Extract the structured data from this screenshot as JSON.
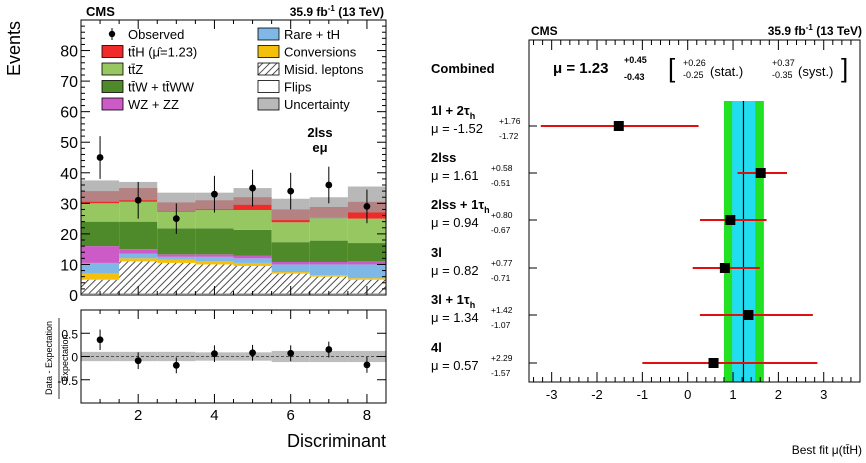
{
  "left": {
    "header": {
      "cms": "CMS",
      "lumi": "35.9 fb",
      "lumi_sup": "-1",
      "lumi_rest": " (13 TeV)"
    },
    "ylabel": "Events",
    "xlabel": "Discriminant",
    "ratio_ylabel_num": "Data - Expectation",
    "ratio_ylabel_den": "Expectation",
    "category_label": "2lss",
    "category_sub": "eμ",
    "legend": [
      {
        "label": "Observed",
        "kind": "marker"
      },
      {
        "label": "Rare + tH",
        "color": "#7fb8e6"
      },
      {
        "label": "tt̄H (μ̂=1.23)",
        "color": "#f02a2a"
      },
      {
        "label": "Conversions",
        "color": "#f5c00b"
      },
      {
        "label": "tt̄Z",
        "color": "#96c760"
      },
      {
        "label": "Misid. leptons",
        "color": "hatch"
      },
      {
        "label": "tt̄W + tt̄WW",
        "color": "#4f8a2a"
      },
      {
        "label": "Flips",
        "color": "#ffffff"
      },
      {
        "label": "WZ + ZZ",
        "color": "#cc5bc8"
      },
      {
        "label": "Uncertainty",
        "color": "#b9b9b9"
      }
    ]
  },
  "right": {
    "header": {
      "cms": "CMS",
      "lumi": "35.9 fb",
      "lumi_sup": "-1",
      "lumi_rest": " (13 TeV)"
    },
    "xlabel": "Best fit μ(tt̄H)",
    "combined": {
      "label": "Combined",
      "mu_text": "μ = 1.23",
      "up": "+0.45",
      "down": "-0.43",
      "stat_up": "+0.26",
      "stat_down": "-0.25",
      "stat_label": "(stat.)",
      "syst_up": "+0.37",
      "syst_down": "-0.35",
      "syst_label": "(syst.)"
    },
    "channels": [
      {
        "name_main": "1l + 2τ",
        "name_sub": "h",
        "mu_text": "μ = -1.52",
        "up": "+1.76",
        "down": "-1.72"
      },
      {
        "name_main": "2lss",
        "name_sub": "",
        "mu_text": "μ = 1.61",
        "up": "+0.58",
        "down": "-0.51"
      },
      {
        "name_main": "2lss + 1τ",
        "name_sub": "h",
        "mu_text": "μ = 0.94",
        "up": "+0.80",
        "down": "-0.67"
      },
      {
        "name_main": "3l",
        "name_sub": "",
        "mu_text": "μ = 0.82",
        "up": "+0.77",
        "down": "-0.71"
      },
      {
        "name_main": "3l + 1τ",
        "name_sub": "h",
        "mu_text": "μ = 1.34",
        "up": "+1.42",
        "down": "-1.07"
      },
      {
        "name_main": "4l",
        "name_sub": "",
        "mu_text": "μ = 0.57",
        "up": "+2.29",
        "down": "-1.57"
      }
    ]
  },
  "chart_data": [
    {
      "type": "bar",
      "stacked": true,
      "title": "2lss eμ",
      "xlabel": "Discriminant",
      "ylabel": "Events",
      "xlim": [
        0.5,
        8.5
      ],
      "ylim": [
        0,
        90
      ],
      "xticks": [
        2,
        4,
        6,
        8
      ],
      "yticks": [
        0,
        10,
        20,
        30,
        40,
        50,
        60,
        70,
        80
      ],
      "bin_edges": [
        0.5,
        1.5,
        2.5,
        3.5,
        4.5,
        5.5,
        6.5,
        7.5,
        8.5
      ],
      "series": [
        {
          "name": "Flips",
          "values": [
            0.5,
            0.5,
            0.5,
            0.5,
            0.5,
            0.5,
            0.5,
            0.5
          ]
        },
        {
          "name": "Misid. leptons",
          "values": [
            4.5,
            10.5,
            10.0,
            9.5,
            9.0,
            6.5,
            5.5,
            4.5
          ]
        },
        {
          "name": "Conversions",
          "values": [
            2.0,
            1.0,
            1.0,
            1.0,
            1.0,
            0.5,
            0.5,
            0.5
          ]
        },
        {
          "name": "Rare + tH",
          "values": [
            3.5,
            1.5,
            1.0,
            1.5,
            1.5,
            2.5,
            3.5,
            4.5
          ]
        },
        {
          "name": "WZ + ZZ",
          "values": [
            5.5,
            1.5,
            0.8,
            0.8,
            0.8,
            0.8,
            0.8,
            1.0
          ]
        },
        {
          "name": "tt̄W + tt̄WW",
          "values": [
            8.0,
            9.0,
            8.5,
            8.5,
            8.5,
            6.5,
            7.0,
            6.0
          ]
        },
        {
          "name": "tt̄Z",
          "values": [
            6.0,
            6.5,
            5.5,
            6.0,
            6.5,
            6.5,
            7.5,
            8.0
          ]
        },
        {
          "name": "tt̄H (μ̂=1.23)",
          "values": [
            4.0,
            4.5,
            3.0,
            3.2,
            4.2,
            4.2,
            3.5,
            5.5
          ]
        }
      ],
      "uncertainty_band": [
        [
          30.5,
          37.5
        ],
        [
          31.0,
          37.0
        ],
        [
          27.5,
          33.5
        ],
        [
          28.0,
          33.5
        ],
        [
          29.5,
          35.0
        ],
        [
          24.5,
          31.5
        ],
        [
          25.0,
          32.0
        ],
        [
          27.0,
          35.5
        ]
      ],
      "observed": {
        "x": [
          1,
          2,
          3,
          4,
          5,
          6,
          7,
          8
        ],
        "y": [
          45,
          31,
          25,
          33,
          35,
          34,
          36,
          29
        ],
        "err": [
          7,
          6,
          5,
          6,
          6,
          6,
          6,
          5.5
        ]
      }
    },
    {
      "type": "scatter",
      "title": "Data - Expectation / Expectation",
      "xlabel": "Discriminant",
      "ylabel": "Data - Expectation / Expectation",
      "xlim": [
        0.5,
        8.5
      ],
      "ylim": [
        -1,
        1
      ],
      "yticks": [
        -0.5,
        0,
        0.5
      ],
      "x": [
        1,
        2,
        3,
        4,
        5,
        6,
        7,
        8
      ],
      "y": [
        0.36,
        -0.09,
        -0.19,
        0.06,
        0.08,
        0.07,
        0.15,
        -0.18
      ],
      "err": [
        0.22,
        0.18,
        0.17,
        0.18,
        0.17,
        0.17,
        0.17,
        0.17
      ],
      "band": [
        0.1,
        0.1,
        0.1,
        0.09,
        0.09,
        0.12,
        0.12,
        0.12
      ]
    },
    {
      "type": "scatter",
      "title": "Best fit μ(tt̄H)",
      "xlabel": "Best fit μ(tt̄H)",
      "xlim": [
        -3.5,
        3.8
      ],
      "xticks": [
        -3,
        -2,
        -1,
        0,
        1,
        2,
        3
      ],
      "combined": {
        "mu": 1.23,
        "up": 0.45,
        "down": 0.43,
        "stat_up": 0.26,
        "stat_down": 0.25,
        "syst_up": 0.37,
        "syst_down": 0.35
      },
      "categories": [
        "1l + 2τh",
        "2lss",
        "2lss + 1τh",
        "3l",
        "3l + 1τh",
        "4l"
      ],
      "values": [
        -1.52,
        1.61,
        0.94,
        0.82,
        1.34,
        0.57
      ],
      "err_up": [
        1.76,
        0.58,
        0.8,
        0.77,
        1.42,
        2.29
      ],
      "err_down": [
        1.72,
        0.51,
        0.67,
        0.71,
        1.07,
        1.57
      ]
    }
  ]
}
